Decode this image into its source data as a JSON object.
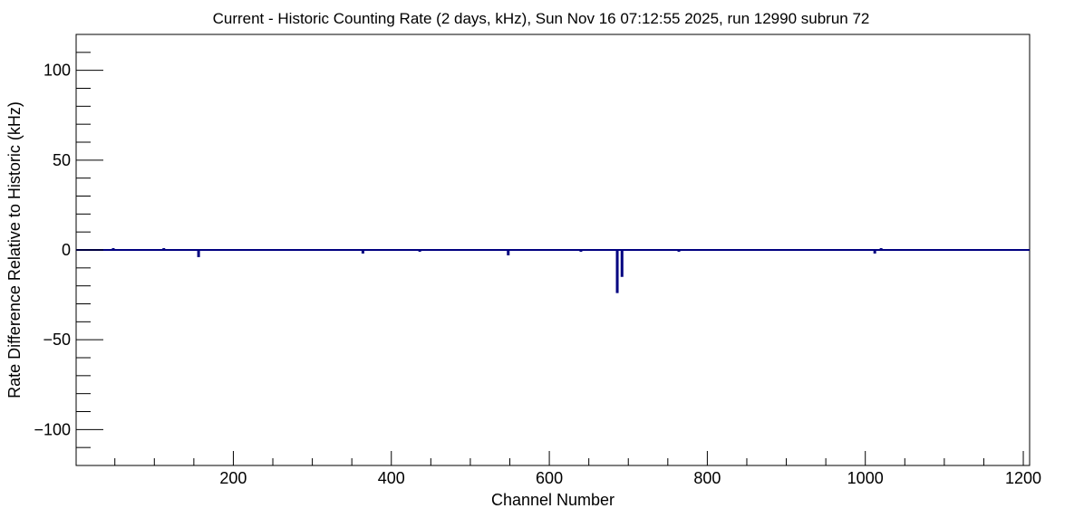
{
  "chart_data": {
    "type": "bar",
    "title": "Current - Historic Counting Rate (2 days, kHz), Sun Nov 16 07:12:55 2025, run 12990 subrun 72",
    "xlabel": "Channel Number",
    "ylabel": "Rate Difference Relative to Historic (kHz)",
    "xlim": [
      1,
      1208
    ],
    "ylim": [
      -120,
      120
    ],
    "x_ticks": [
      200,
      400,
      600,
      800,
      1000,
      1200
    ],
    "y_ticks": [
      -100,
      -50,
      0,
      50,
      100
    ],
    "y_tick_labels": [
      "−100",
      "−50",
      "0",
      "50",
      "100"
    ],
    "grid": false,
    "legend": "none",
    "baseline": 0,
    "x": [
      48,
      112,
      156,
      364,
      436,
      548,
      640,
      686,
      692,
      764,
      1012,
      1020
    ],
    "values": [
      1,
      1,
      -4,
      -2,
      -1,
      -3,
      -1,
      -24,
      -15,
      -1,
      -2,
      1
    ],
    "bar_color": "#000080"
  }
}
